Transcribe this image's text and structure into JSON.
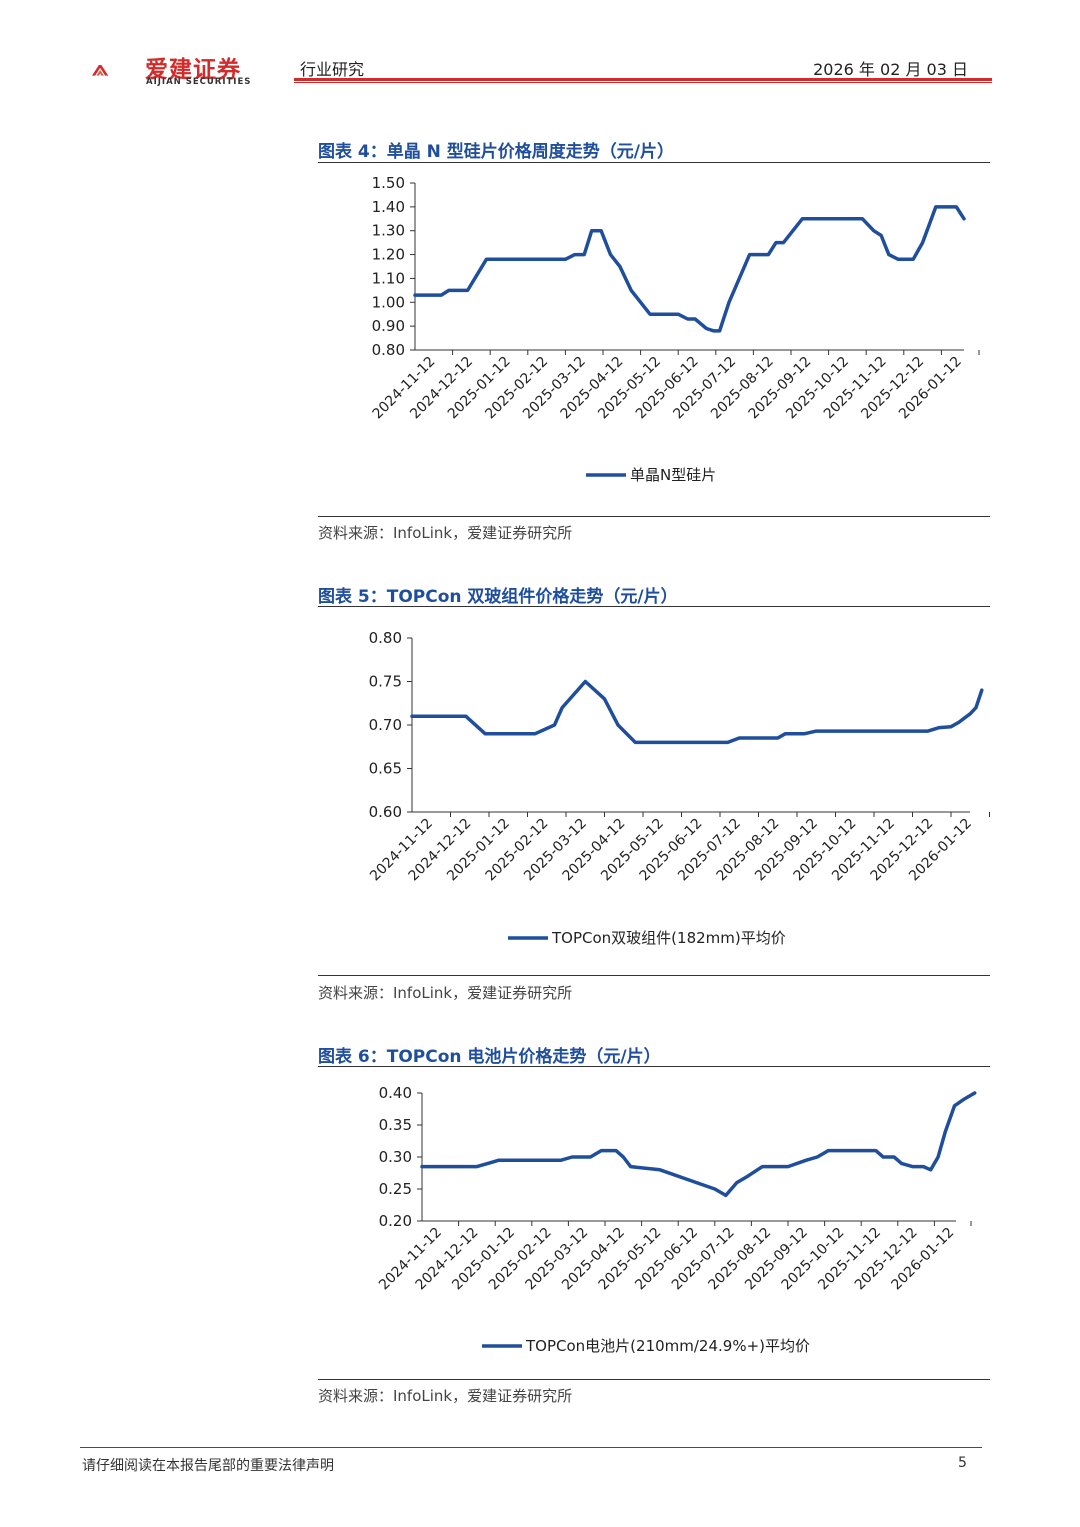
{
  "header": {
    "logo_cn": "爱建证券",
    "logo_en": "AIJIAN SECURITIES",
    "category": "行业研究",
    "date": "2026 年 02 月 03 日",
    "brand_color": "#d32a2a"
  },
  "figures": [
    {
      "title": "图表 4：单晶 N 型硅片价格周度走势（元/片）",
      "source": "资料来源：InfoLink，爱建证券研究所"
    },
    {
      "title": "图表 5：TOPCon 双玻组件价格走势（元/片）",
      "source": "资料来源：InfoLink，爱建证券研究所"
    },
    {
      "title": "图表 6：TOPCon 电池片价格走势（元/片）",
      "source": "资料来源：InfoLink，爱建证券研究所"
    }
  ],
  "chart_data": [
    {
      "type": "line",
      "categories": [
        "2024-11-12",
        "2024-12-12",
        "2025-01-12",
        "2025-02-12",
        "2025-03-12",
        "2025-04-12",
        "2025-05-12",
        "2025-06-12",
        "2025-07-12",
        "2025-08-12",
        "2025-09-12",
        "2025-10-12",
        "2025-11-12",
        "2025-12-12",
        "2026-01-12"
      ],
      "yticks": [
        "0.80",
        "0.90",
        "1.00",
        "1.10",
        "1.20",
        "1.30",
        "1.40",
        "1.50"
      ],
      "ylim": [
        0.8,
        1.5
      ],
      "series": [
        {
          "name": "单晶N型硅片",
          "color": "#1f4e9c",
          "points": [
            [
              0,
              1.03
            ],
            [
              0.7,
              1.03
            ],
            [
              0.9,
              1.05
            ],
            [
              1.4,
              1.05
            ],
            [
              1.9,
              1.18
            ],
            [
              4.0,
              1.18
            ],
            [
              4.25,
              1.2
            ],
            [
              4.5,
              1.2
            ],
            [
              4.7,
              1.3
            ],
            [
              4.95,
              1.3
            ],
            [
              5.2,
              1.2
            ],
            [
              5.45,
              1.15
            ],
            [
              5.75,
              1.05
            ],
            [
              6.25,
              0.95
            ],
            [
              7.0,
              0.95
            ],
            [
              7.25,
              0.93
            ],
            [
              7.45,
              0.93
            ],
            [
              7.75,
              0.89
            ],
            [
              7.95,
              0.88
            ],
            [
              8.1,
              0.88
            ],
            [
              8.35,
              1.0
            ],
            [
              8.9,
              1.2
            ],
            [
              9.4,
              1.2
            ],
            [
              9.6,
              1.25
            ],
            [
              9.8,
              1.25
            ],
            [
              10.3,
              1.35
            ],
            [
              11.9,
              1.35
            ],
            [
              12.2,
              1.3
            ],
            [
              12.4,
              1.28
            ],
            [
              12.6,
              1.2
            ],
            [
              12.85,
              1.18
            ],
            [
              13.25,
              1.18
            ],
            [
              13.5,
              1.25
            ],
            [
              13.85,
              1.4
            ],
            [
              14.4,
              1.4
            ],
            [
              14.6,
              1.35
            ]
          ]
        }
      ]
    },
    {
      "type": "line",
      "categories": [
        "2024-11-12",
        "2024-12-12",
        "2025-01-12",
        "2025-02-12",
        "2025-03-12",
        "2025-04-12",
        "2025-05-12",
        "2025-06-12",
        "2025-07-12",
        "2025-08-12",
        "2025-09-12",
        "2025-10-12",
        "2025-11-12",
        "2025-12-12",
        "2026-01-12"
      ],
      "yticks": [
        "0.60",
        "0.65",
        "0.70",
        "0.75",
        "0.80"
      ],
      "ylim": [
        0.6,
        0.8
      ],
      "series": [
        {
          "name": "TOPCon双玻组件(182mm)平均价",
          "color": "#1f4e9c",
          "points": [
            [
              0,
              0.71
            ],
            [
              1.4,
              0.71
            ],
            [
              1.9,
              0.69
            ],
            [
              3.2,
              0.69
            ],
            [
              3.7,
              0.7
            ],
            [
              3.9,
              0.72
            ],
            [
              4.5,
              0.75
            ],
            [
              4.75,
              0.74
            ],
            [
              5.0,
              0.73
            ],
            [
              5.35,
              0.7
            ],
            [
              5.8,
              0.68
            ],
            [
              8.2,
              0.68
            ],
            [
              8.5,
              0.685
            ],
            [
              9.5,
              0.685
            ],
            [
              9.7,
              0.69
            ],
            [
              10.2,
              0.69
            ],
            [
              10.5,
              0.693
            ],
            [
              13.4,
              0.693
            ],
            [
              13.7,
              0.697
            ],
            [
              14.0,
              0.698
            ],
            [
              14.2,
              0.703
            ],
            [
              14.5,
              0.713
            ],
            [
              14.65,
              0.72
            ],
            [
              14.8,
              0.74
            ]
          ]
        }
      ]
    },
    {
      "type": "line",
      "categories": [
        "2024-11-12",
        "2024-12-12",
        "2025-01-12",
        "2025-02-12",
        "2025-03-12",
        "2025-04-12",
        "2025-05-12",
        "2025-06-12",
        "2025-07-12",
        "2025-08-12",
        "2025-09-12",
        "2025-10-12",
        "2025-11-12",
        "2025-12-12",
        "2026-01-12"
      ],
      "yticks": [
        "0.20",
        "0.25",
        "0.30",
        "0.35",
        "0.40"
      ],
      "ylim": [
        0.2,
        0.4
      ],
      "series": [
        {
          "name": "TOPCon电池片(210mm/24.9%+)平均价",
          "color": "#1f4e9c",
          "points": [
            [
              0,
              0.285
            ],
            [
              1.5,
              0.285
            ],
            [
              1.8,
              0.29
            ],
            [
              2.1,
              0.295
            ],
            [
              3.8,
              0.295
            ],
            [
              4.1,
              0.3
            ],
            [
              4.6,
              0.3
            ],
            [
              4.9,
              0.31
            ],
            [
              5.1,
              0.31
            ],
            [
              5.3,
              0.31
            ],
            [
              5.5,
              0.3
            ],
            [
              5.7,
              0.285
            ],
            [
              6.5,
              0.28
            ],
            [
              7.5,
              0.26
            ],
            [
              8.0,
              0.25
            ],
            [
              8.3,
              0.24
            ],
            [
              8.6,
              0.26
            ],
            [
              8.9,
              0.27
            ],
            [
              9.3,
              0.285
            ],
            [
              10.0,
              0.285
            ],
            [
              10.5,
              0.295
            ],
            [
              10.8,
              0.3
            ],
            [
              11.1,
              0.31
            ],
            [
              12.4,
              0.31
            ],
            [
              12.6,
              0.3
            ],
            [
              12.9,
              0.3
            ],
            [
              13.1,
              0.29
            ],
            [
              13.4,
              0.285
            ],
            [
              13.7,
              0.285
            ],
            [
              13.9,
              0.28
            ],
            [
              14.1,
              0.3
            ],
            [
              14.3,
              0.34
            ],
            [
              14.55,
              0.38
            ],
            [
              14.8,
              0.39
            ],
            [
              15.1,
              0.4
            ]
          ]
        }
      ]
    }
  ],
  "footer": {
    "disclaimer": "请仔细阅读在本报告尾部的重要法律声明",
    "page": "5"
  }
}
